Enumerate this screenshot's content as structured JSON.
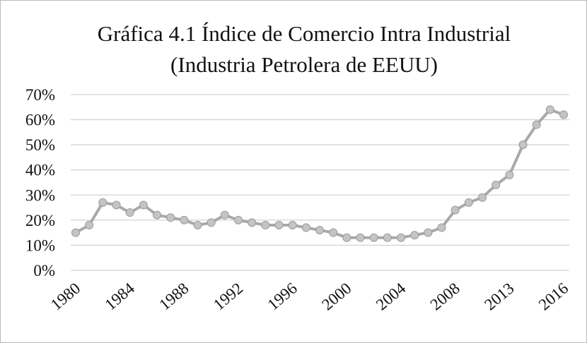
{
  "chart_data": {
    "type": "line",
    "title": "Gráfica 4.1 Índice de Comercio Intra Industrial",
    "subtitle": "(Industria Petrolera de EEUU)",
    "categories": [
      "1980",
      null,
      null,
      null,
      "1984",
      null,
      null,
      null,
      "1988",
      null,
      null,
      null,
      "1992",
      null,
      null,
      null,
      "1996",
      null,
      null,
      null,
      "2000",
      null,
      null,
      null,
      "2004",
      null,
      null,
      null,
      "2008",
      null,
      null,
      null,
      "2013",
      null,
      null,
      null,
      "2016"
    ],
    "series": [
      {
        "name": "Índice",
        "color": "#a9a9a9",
        "values": [
          15,
          18,
          27,
          26,
          23,
          26,
          22,
          21,
          20,
          18,
          19,
          22,
          20,
          19,
          18,
          18,
          18,
          17,
          16,
          15,
          13,
          13,
          13,
          13,
          13,
          14,
          15,
          17,
          24,
          27,
          29,
          34,
          38,
          50,
          58,
          64,
          62
        ]
      }
    ],
    "ylim": [
      0,
      70
    ],
    "yticks": [
      {
        "value": 0,
        "label": "0%"
      },
      {
        "value": 10,
        "label": "10%"
      },
      {
        "value": 20,
        "label": "20%"
      },
      {
        "value": 30,
        "label": "30%"
      },
      {
        "value": 40,
        "label": "40%"
      },
      {
        "value": 50,
        "label": "50%"
      },
      {
        "value": 60,
        "label": "60%"
      },
      {
        "value": 70,
        "label": "70%"
      }
    ],
    "grid": true
  }
}
